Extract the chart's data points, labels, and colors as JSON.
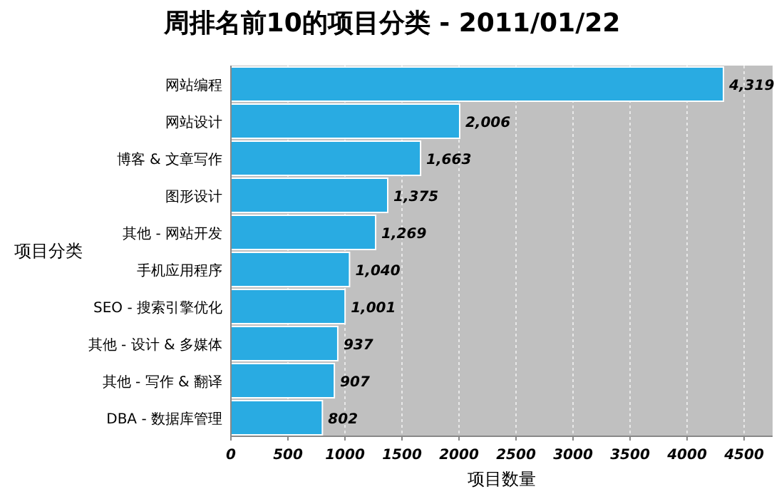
{
  "chart_data": {
    "type": "bar",
    "orientation": "horizontal",
    "title": "周排名前10的项目分类 - 2011/01/22",
    "xlabel": "项目数量",
    "ylabel": "项目分类",
    "categories": [
      "网站编程",
      "网站设计",
      "博客 & 文章写作",
      "图形设计",
      "其他 - 网站开发",
      "手机应用程序",
      "SEO - 搜索引擎优化",
      "其他 - 设计 & 多媒体",
      "其他 - 写作 & 翻译",
      "DBA - 数据库管理"
    ],
    "values": [
      4319,
      2006,
      1663,
      1375,
      1269,
      1040,
      1001,
      937,
      907,
      802
    ],
    "value_labels": [
      "4,319",
      "2,006",
      "1,663",
      "1,375",
      "1,269",
      "1,040",
      "1,001",
      "937",
      "907",
      "802"
    ],
    "color": "#29abe2",
    "xlim": [
      0,
      4750
    ],
    "xticks": [
      0,
      500,
      1000,
      1500,
      2000,
      2500,
      3000,
      3500,
      4000,
      4500
    ],
    "grid": "x"
  }
}
